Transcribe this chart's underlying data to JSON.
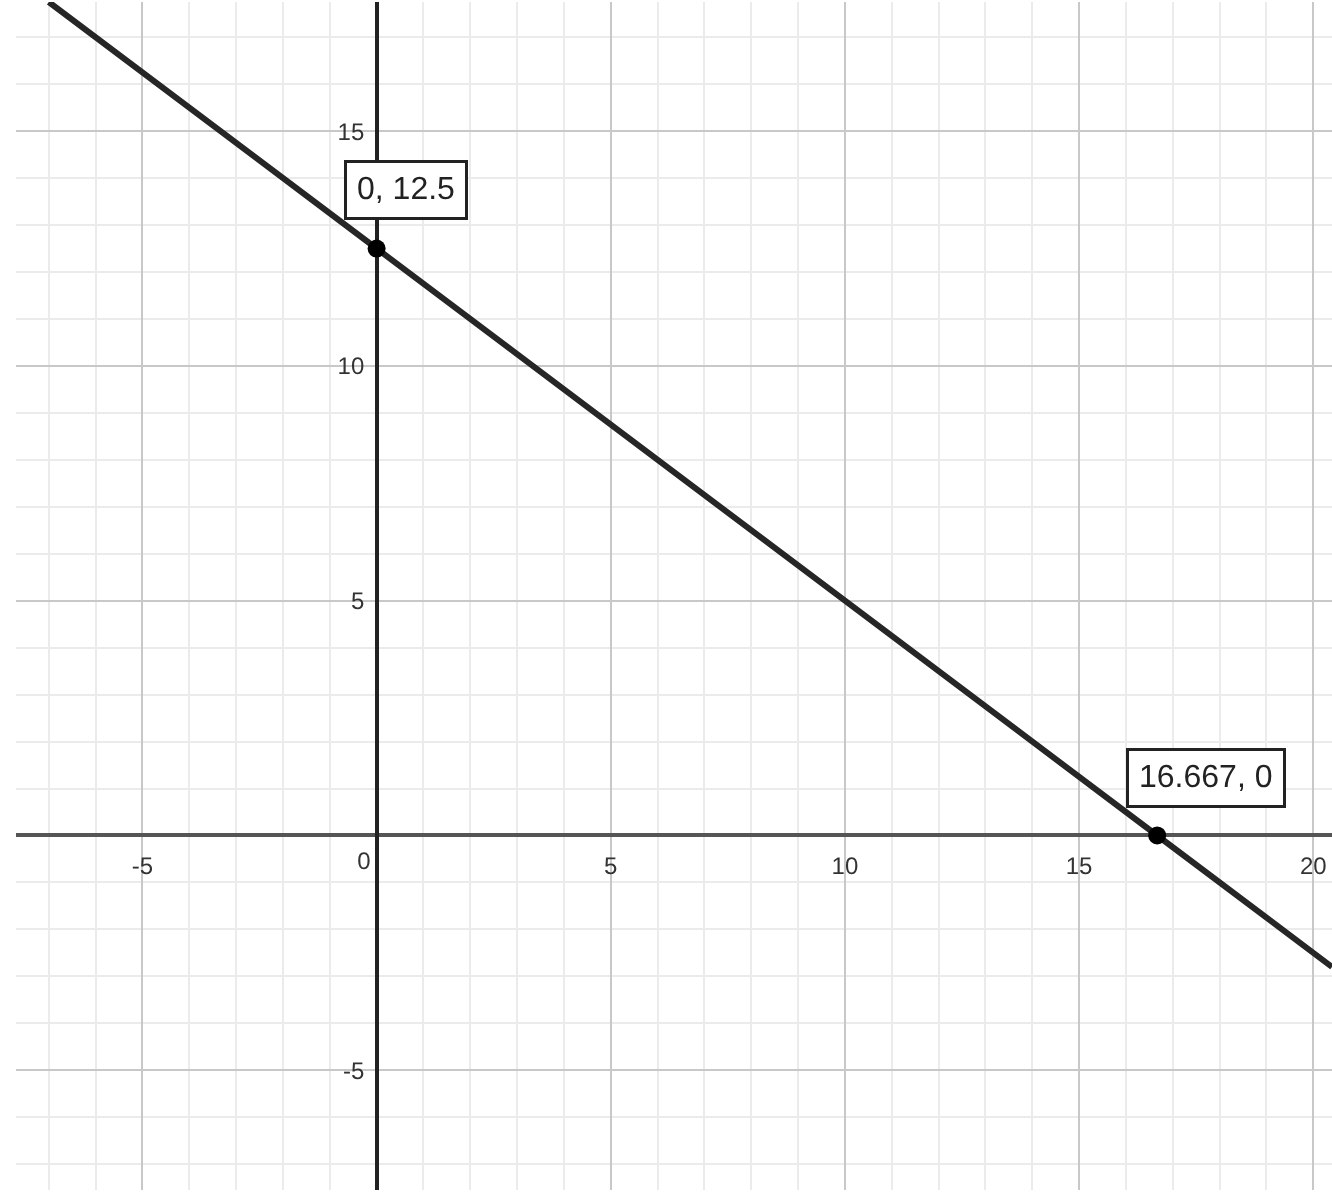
{
  "chart_data": {
    "type": "line",
    "series": [
      {
        "x": [
          -7,
          0,
          16.667,
          20.4
        ],
        "values": [
          17.75,
          12.5,
          0,
          -2.8
        ],
        "color": "#262626",
        "marker": "none"
      },
      {
        "type": "scatter",
        "x": [
          0,
          16.667
        ],
        "values": [
          12.5,
          0
        ],
        "color": "#000000",
        "marker": "circle"
      }
    ],
    "annotations": [
      {
        "text": "0, 12.5",
        "x": 0,
        "y": 12.5
      },
      {
        "text": "16.667, 0",
        "x": 16.667,
        "y": 0
      }
    ],
    "xlim": [
      -7.7,
      20.4
    ],
    "ylim": [
      -7.55,
      17.75
    ],
    "xticks": [
      {
        "value": -7,
        "label": null
      },
      {
        "value": -6,
        "label": null
      },
      -5,
      {
        "value": -4,
        "label": null
      },
      {
        "value": -3,
        "label": null
      },
      {
        "value": -2,
        "label": null
      },
      {
        "value": -1,
        "label": null
      },
      0,
      {
        "value": 1,
        "label": null
      },
      {
        "value": 2,
        "label": null
      },
      {
        "value": 3,
        "label": null
      },
      {
        "value": 4,
        "label": null
      },
      5,
      {
        "value": 6,
        "label": null
      },
      {
        "value": 7,
        "label": null
      },
      {
        "value": 8,
        "label": null
      },
      {
        "value": 9,
        "label": null
      },
      10,
      {
        "value": 11,
        "label": null
      },
      {
        "value": 12,
        "label": null
      },
      {
        "value": 13,
        "label": null
      },
      {
        "value": 14,
        "label": null
      },
      15,
      {
        "value": 16,
        "label": null
      },
      {
        "value": 17,
        "label": null
      },
      {
        "value": 18,
        "label": null
      },
      {
        "value": 19,
        "label": null
      },
      20
    ],
    "yticks": [
      {
        "value": -7,
        "label": null
      },
      {
        "value": -6,
        "label": null
      },
      -5,
      {
        "value": -4,
        "label": null
      },
      {
        "value": -3,
        "label": null
      },
      {
        "value": -2,
        "label": null
      },
      {
        "value": -1,
        "label": null
      },
      {
        "value": 1,
        "label": null
      },
      {
        "value": 2,
        "label": null
      },
      {
        "value": 3,
        "label": null
      },
      {
        "value": 4,
        "label": null
      },
      5,
      {
        "value": 6,
        "label": null
      },
      {
        "value": 7,
        "label": null
      },
      {
        "value": 8,
        "label": null
      },
      {
        "value": 9,
        "label": null
      },
      10,
      {
        "value": 11,
        "label": null
      },
      {
        "value": 12,
        "label": null
      },
      {
        "value": 13,
        "label": null
      },
      {
        "value": 14,
        "label": null
      },
      15,
      {
        "value": 16,
        "label": null
      },
      {
        "value": 17,
        "label": null
      }
    ],
    "grid": true
  }
}
